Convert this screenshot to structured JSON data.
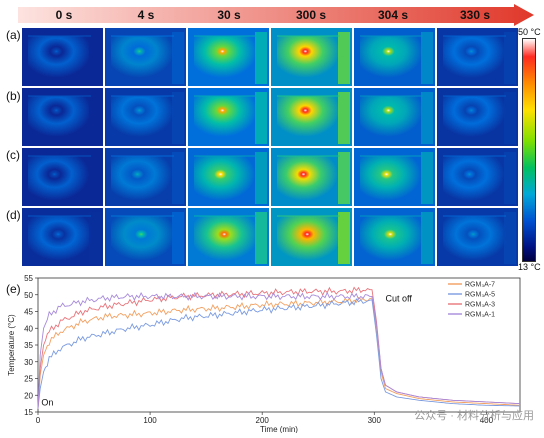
{
  "panel_labels": [
    "(a)",
    "(b)",
    "(c)",
    "(d)",
    "(e)"
  ],
  "time_labels": [
    "0 s",
    "4 s",
    "30 s",
    "300 s",
    "304 s",
    "330 s"
  ],
  "colorbar": {
    "max_label": "50 °C",
    "min_label": "13 °C",
    "low": "#000040",
    "high": "#ffffff"
  },
  "heat_levels": [
    [
      0.0,
      0.3,
      0.72,
      0.95,
      0.55,
      0.15
    ],
    [
      0.0,
      0.18,
      0.72,
      0.95,
      0.55,
      0.12
    ],
    [
      0.0,
      0.22,
      0.65,
      0.92,
      0.62,
      0.15
    ],
    [
      0.05,
      0.35,
      0.8,
      1.0,
      0.6,
      0.18
    ]
  ],
  "watermark": "公众号 · 材料分析与应用",
  "chart_data": {
    "type": "line",
    "xlabel": "Time (min)",
    "ylabel": "Temperature (°C)",
    "xlim": [
      0,
      430
    ],
    "ylim": [
      15,
      55
    ],
    "xticks": [
      0,
      100,
      200,
      300,
      400
    ],
    "yticks": [
      15,
      20,
      25,
      30,
      35,
      40,
      45,
      50,
      55
    ],
    "annotations": [
      {
        "text": "On",
        "x": 3,
        "y": 17
      },
      {
        "text": "Cut off",
        "x": 310,
        "y": 48
      }
    ],
    "series": [
      {
        "name": "RGM₃A-7",
        "color": "#f2a061",
        "x": [
          0,
          2,
          5,
          10,
          20,
          40,
          60,
          80,
          100,
          130,
          160,
          200,
          240,
          270,
          290,
          298,
          302,
          306,
          310,
          320,
          340,
          370,
          400,
          430
        ],
        "y": [
          16,
          26,
          32,
          36,
          39,
          42,
          43.5,
          44,
          44.5,
          45.5,
          46,
          47,
          47.5,
          48,
          48.5,
          49,
          40,
          27,
          22,
          20.5,
          19,
          18,
          17.5,
          17
        ]
      },
      {
        "name": "RGM₃A-5",
        "color": "#7b9be0",
        "x": [
          0,
          2,
          5,
          10,
          20,
          40,
          60,
          80,
          100,
          130,
          160,
          200,
          240,
          270,
          290,
          298,
          302,
          306,
          310,
          320,
          340,
          370,
          400,
          430
        ],
        "y": [
          16,
          22,
          27,
          31,
          34,
          37,
          38.5,
          40,
          41,
          43,
          44,
          45.5,
          46.5,
          47.5,
          48,
          48.5,
          38,
          25,
          21,
          19.5,
          18.5,
          17.5,
          17,
          16.8
        ]
      },
      {
        "name": "RGM₃A-3",
        "color": "#e8747a",
        "x": [
          0,
          2,
          5,
          10,
          20,
          40,
          60,
          80,
          100,
          130,
          160,
          200,
          240,
          270,
          290,
          298,
          302,
          306,
          310,
          320,
          340,
          370,
          400,
          430
        ],
        "y": [
          16,
          28,
          35,
          39,
          42,
          45,
          46.5,
          47.5,
          48.5,
          49.5,
          50,
          50.5,
          51,
          51,
          51.5,
          51.5,
          42,
          28,
          23,
          21,
          19.5,
          18.5,
          18,
          17.5
        ]
      },
      {
        "name": "RGM₃A-1",
        "color": "#a78bdb",
        "x": [
          0,
          2,
          5,
          10,
          20,
          40,
          60,
          80,
          100,
          130,
          160,
          200,
          240,
          270,
          290,
          298,
          302,
          306,
          310,
          320,
          340,
          370,
          400,
          430
        ],
        "y": [
          16,
          32,
          40,
          44,
          46.5,
          48,
          49,
          49.5,
          49.5,
          49.5,
          49.5,
          49.5,
          49.5,
          49.5,
          49.5,
          49.5,
          41,
          28,
          23,
          21,
          19.5,
          18.5,
          18,
          17.5
        ]
      }
    ]
  }
}
